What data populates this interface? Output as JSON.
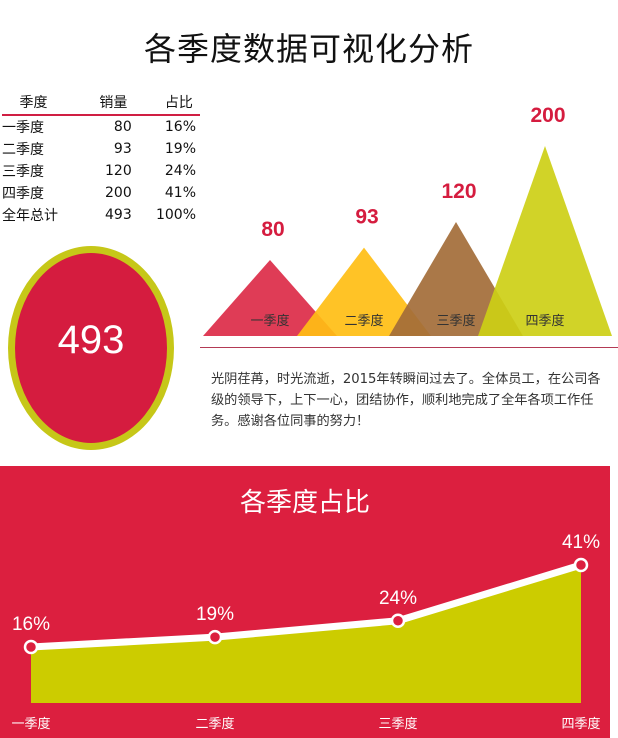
{
  "title": "各季度数据可视化分析",
  "table": {
    "headers": [
      "季度",
      "销量",
      "占比"
    ],
    "rows": [
      {
        "quarter": "一季度",
        "sales": "80",
        "share": "16%"
      },
      {
        "quarter": "二季度",
        "sales": "93",
        "share": "19%"
      },
      {
        "quarter": "三季度",
        "sales": "120",
        "share": "24%"
      },
      {
        "quarter": "四季度",
        "sales": "200",
        "share": "41%"
      },
      {
        "quarter": "全年总计",
        "sales": "493",
        "share": "100%"
      }
    ]
  },
  "total": "493",
  "paragraph": "光阴荏苒，时光流逝，2015年转瞬间过去了。全体员工，在公司各级的领导下，上下一心，团结协作，顺利地完成了全年各项工作任务。感谢各位同事的努力！",
  "panel_title": "各季度占比",
  "colors": {
    "accent": "#dc1f3f",
    "q1": "#dc2b48",
    "q2": "#ffbe14",
    "q3": "#a36c38",
    "q4": "#cdcf16",
    "area": "#cccc00",
    "ellipse_border": "#c6c718"
  },
  "chart_data": [
    {
      "type": "bar",
      "categories": [
        "一季度",
        "二季度",
        "三季度",
        "四季度"
      ],
      "values": [
        80,
        93,
        120,
        200
      ],
      "data_labels": [
        "80",
        "93",
        "120",
        "200"
      ]
    },
    {
      "type": "area",
      "title": "各季度占比",
      "categories": [
        "一季度",
        "二季度",
        "三季度",
        "四季度"
      ],
      "values": [
        16,
        19,
        24,
        41
      ],
      "data_labels": [
        "16%",
        "19%",
        "24%",
        "41%"
      ]
    }
  ]
}
